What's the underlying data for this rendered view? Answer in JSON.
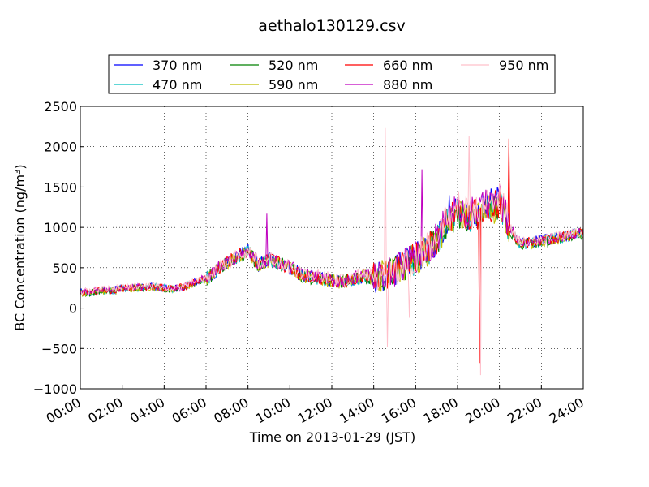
{
  "chart_data": {
    "type": "line",
    "title": "aethalo130129.csv",
    "xlabel": "Time on 2013-01-29 (JST)",
    "ylabel": "BC Concentration (ng/m",
    "ylabel_sup": "3",
    "ylabel_end": ")",
    "xlim": [
      "00:00",
      "24:00"
    ],
    "ylim": [
      -1000,
      2500
    ],
    "x_ticks": [
      "00:00",
      "02:00",
      "04:00",
      "06:00",
      "08:00",
      "10:00",
      "12:00",
      "14:00",
      "16:00",
      "18:00",
      "20:00",
      "22:00",
      "24:00"
    ],
    "y_ticks": [
      "2500",
      "2000",
      "1500",
      "1000",
      "500",
      "0",
      "−500",
      "−1000"
    ],
    "y_tick_values": [
      2500,
      2000,
      1500,
      1000,
      500,
      0,
      -500,
      -1000
    ],
    "grid": true,
    "legend_position": "top",
    "x_hours": [
      0,
      0.5,
      1,
      1.5,
      2,
      2.5,
      3,
      3.5,
      4,
      4.5,
      5,
      5.5,
      6,
      6.5,
      7,
      7.5,
      8,
      8.5,
      9,
      9.5,
      10,
      10.5,
      11,
      11.5,
      12,
      12.5,
      13,
      13.5,
      14,
      14.5,
      15,
      15.5,
      16,
      16.5,
      17,
      17.5,
      18,
      18.5,
      19,
      19.5,
      20,
      20.5,
      21,
      21.5,
      22,
      22.5,
      23,
      23.5,
      24
    ],
    "series": [
      {
        "name": "370 nm",
        "color": "#0000ff",
        "values": [
          200,
          190,
          230,
          220,
          250,
          250,
          260,
          270,
          250,
          240,
          270,
          330,
          370,
          470,
          560,
          640,
          720,
          540,
          600,
          560,
          500,
          420,
          390,
          370,
          350,
          330,
          360,
          400,
          380,
          420,
          460,
          560,
          620,
          720,
          850,
          1100,
          1250,
          1150,
          1200,
          1280,
          1350,
          1000,
          800,
          820,
          840,
          860,
          880,
          920,
          940
        ]
      },
      {
        "name": "470 nm",
        "color": "#00bfbf",
        "values": [
          195,
          185,
          225,
          215,
          245,
          248,
          255,
          265,
          250,
          240,
          265,
          325,
          365,
          465,
          555,
          635,
          710,
          535,
          595,
          555,
          495,
          415,
          385,
          365,
          348,
          328,
          355,
          395,
          378,
          415,
          455,
          550,
          610,
          700,
          830,
          1060,
          1200,
          1110,
          1160,
          1230,
          1300,
          980,
          790,
          810,
          830,
          850,
          870,
          910,
          930
        ]
      },
      {
        "name": "520 nm",
        "color": "#008000",
        "values": [
          190,
          180,
          220,
          210,
          240,
          245,
          250,
          260,
          245,
          235,
          260,
          320,
          360,
          460,
          550,
          630,
          700,
          530,
          590,
          550,
          490,
          410,
          380,
          360,
          345,
          325,
          350,
          390,
          375,
          410,
          450,
          545,
          600,
          690,
          810,
          1030,
          1160,
          1070,
          1120,
          1190,
          1250,
          960,
          780,
          800,
          820,
          840,
          860,
          900,
          920
        ]
      },
      {
        "name": "590 nm",
        "color": "#bfbf00",
        "values": [
          192,
          182,
          222,
          212,
          242,
          246,
          252,
          262,
          247,
          237,
          262,
          322,
          362,
          462,
          552,
          632,
          705,
          532,
          592,
          552,
          492,
          412,
          382,
          362,
          346,
          326,
          352,
          392,
          376,
          412,
          452,
          547,
          605,
          695,
          820,
          1045,
          1180,
          1090,
          1140,
          1210,
          1270,
          970,
          785,
          805,
          825,
          845,
          865,
          905,
          925
        ]
      },
      {
        "name": "660 nm",
        "color": "#ff0000",
        "values": [
          198,
          188,
          228,
          218,
          248,
          252,
          258,
          268,
          252,
          242,
          268,
          328,
          368,
          468,
          558,
          638,
          715,
          538,
          598,
          558,
          498,
          418,
          388,
          368,
          352,
          332,
          358,
          398,
          382,
          418,
          458,
          555,
          615,
          710,
          840,
          1080,
          1220,
          1130,
          1180,
          1250,
          1320,
          1000,
          800,
          815,
          835,
          855,
          875,
          915,
          935
        ]
      },
      {
        "name": "880 nm",
        "color": "#bf00bf",
        "values": [
          205,
          195,
          235,
          225,
          255,
          258,
          262,
          275,
          255,
          245,
          275,
          335,
          375,
          475,
          565,
          645,
          730,
          545,
          610,
          570,
          505,
          430,
          395,
          375,
          355,
          335,
          365,
          405,
          385,
          425,
          465,
          565,
          630,
          730,
          860,
          1110,
          1270,
          1170,
          1220,
          1290,
          1360,
          1010,
          805,
          825,
          845,
          865,
          885,
          925,
          945
        ]
      },
      {
        "name": "950 nm",
        "color": "#ffc0cb",
        "values": [
          210,
          200,
          240,
          230,
          260,
          262,
          268,
          280,
          260,
          250,
          280,
          340,
          380,
          480,
          570,
          650,
          740,
          550,
          615,
          575,
          510,
          435,
          400,
          380,
          360,
          340,
          370,
          410,
          390,
          430,
          470,
          570,
          640,
          740,
          870,
          1120,
          1280,
          1180,
          1230,
          1300,
          1370,
          1020,
          810,
          830,
          850,
          870,
          890,
          930,
          950
        ]
      }
    ],
    "spikes": [
      {
        "series": "950 nm",
        "x": 14.55,
        "y": 2230
      },
      {
        "series": "950 nm",
        "x": 14.65,
        "y": -480
      },
      {
        "series": "950 nm",
        "x": 15.7,
        "y": -120
      },
      {
        "series": "880 nm",
        "x": 16.3,
        "y": 1720
      },
      {
        "series": "950 nm",
        "x": 18.55,
        "y": 2130
      },
      {
        "series": "950 nm",
        "x": 19.1,
        "y": -830
      },
      {
        "series": "660 nm",
        "x": 19.05,
        "y": -680
      },
      {
        "series": "660 nm",
        "x": 20.45,
        "y": 2100
      },
      {
        "series": "370 nm",
        "x": 17.6,
        "y": 1400
      },
      {
        "series": "880 nm",
        "x": 8.9,
        "y": 1170
      }
    ]
  }
}
